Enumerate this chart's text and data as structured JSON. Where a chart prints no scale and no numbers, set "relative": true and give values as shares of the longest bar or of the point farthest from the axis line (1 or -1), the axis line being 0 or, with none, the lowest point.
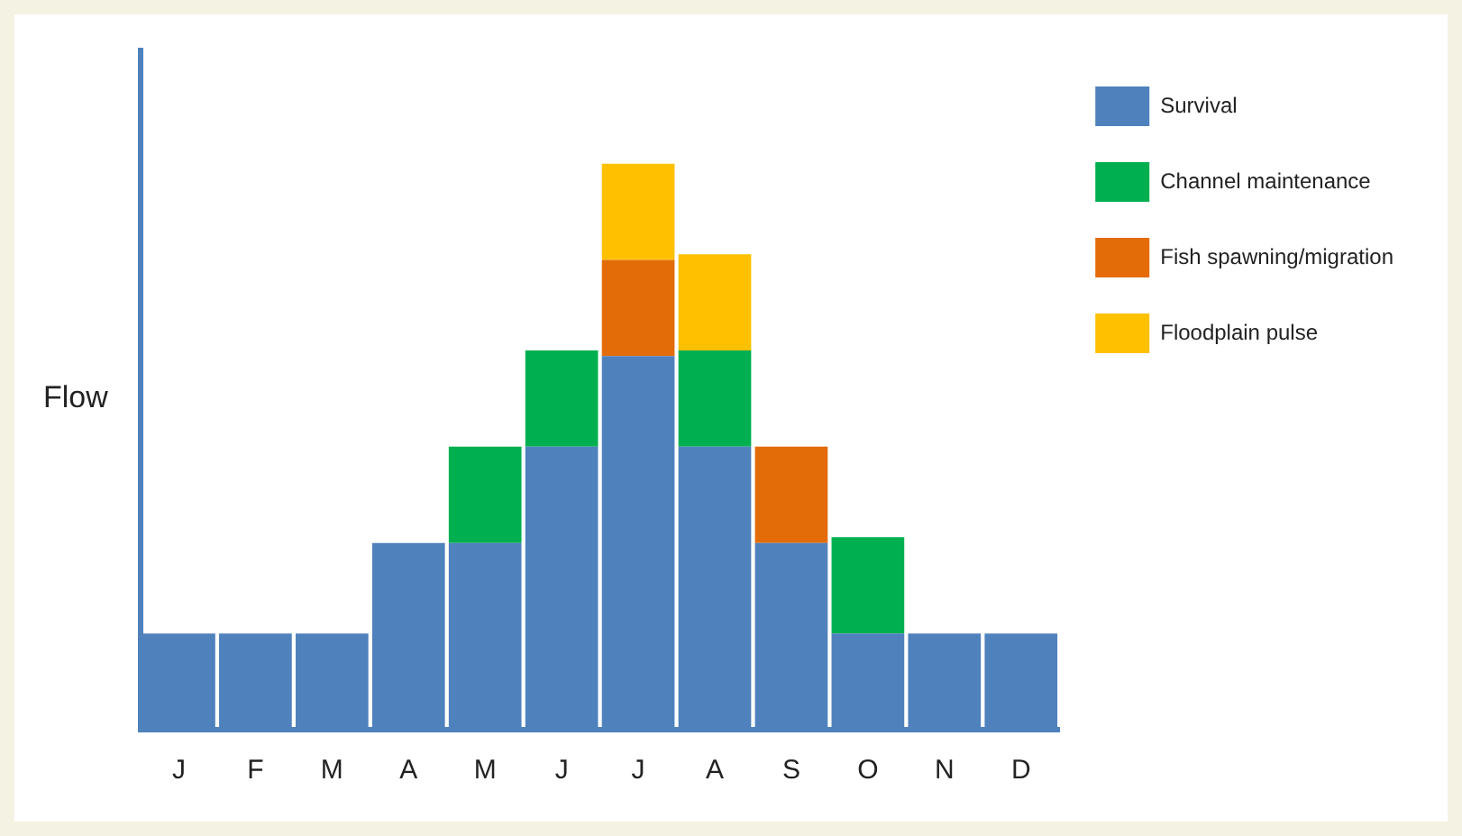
{
  "chart_data": {
    "type": "bar",
    "ylabel": "Flow",
    "relative": true,
    "stacked": true,
    "legend": "top right",
    "grid": false,
    "categories": [
      "J",
      "F",
      "M",
      "A",
      "M",
      "J",
      "J",
      "A",
      "S",
      "O",
      "N",
      "D"
    ],
    "series": [
      {
        "name": "Survival",
        "color": "#4f81bd",
        "values": [
          0.17,
          0.17,
          0.17,
          0.33,
          0.33,
          0.5,
          0.66,
          0.5,
          0.33,
          0.17,
          0.17,
          0.17
        ]
      },
      {
        "name": "Channel maintenance",
        "color": "#00b050",
        "values": [
          null,
          null,
          null,
          null,
          0.17,
          0.17,
          null,
          0.17,
          null,
          0.17,
          null,
          null
        ]
      },
      {
        "name": "Fish spawning/migration",
        "color": "#e36c09",
        "values": [
          null,
          null,
          null,
          null,
          null,
          null,
          0.17,
          null,
          0.17,
          null,
          null,
          null
        ]
      },
      {
        "name": "Floodplain pulse",
        "color": "#ffc000",
        "values": [
          null,
          null,
          null,
          null,
          null,
          null,
          0.17,
          0.17,
          null,
          null,
          null,
          null
        ]
      }
    ]
  }
}
